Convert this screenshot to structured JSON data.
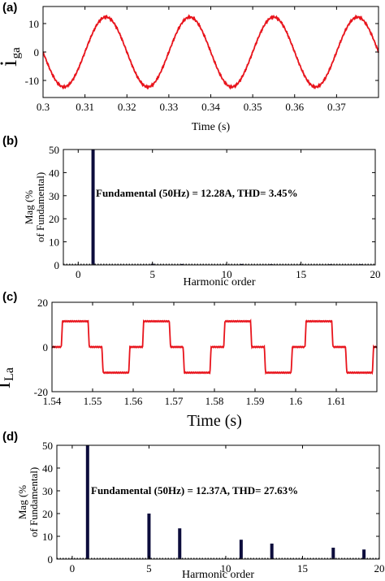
{
  "chart_data": [
    {
      "type": "line",
      "panel": "(a)",
      "ylabel": "i",
      "ylabel_sub": "ga",
      "xlabel": "Time (s)",
      "xlim": [
        0.3,
        0.38
      ],
      "ylim": [
        -16,
        16
      ],
      "xticks": [
        0.3,
        0.31,
        0.32,
        0.33,
        0.34,
        0.35,
        0.36,
        0.37
      ],
      "xtick_labels": [
        "0.3",
        "0.31",
        "0.32",
        "0.33",
        "0.34",
        "0.35",
        "0.36",
        "0.37"
      ],
      "yticks": [
        -10,
        0,
        10
      ],
      "ytick_labels": [
        "-10",
        "0",
        "10"
      ],
      "series": [
        {
          "color": "#e8141c",
          "waveform": "sine",
          "frequency_hz": 50,
          "amplitude": 12.28,
          "peak_at_s": 0.315
        }
      ],
      "grid": false
    },
    {
      "type": "bar",
      "panel": "(b)",
      "ylabel": "Mag (% of Fundamental)",
      "ylabel_lines": [
        "Mag (%",
        "of Fundamental)"
      ],
      "xlabel": "Harmonic order",
      "xlim": [
        -1,
        20
      ],
      "ylim": [
        0,
        50
      ],
      "xticks": [
        0,
        5,
        10,
        15,
        20
      ],
      "xtick_labels": [
        "0",
        "5",
        "10",
        "15",
        "20"
      ],
      "yticks": [
        0,
        10,
        20,
        30,
        40,
        50
      ],
      "ytick_labels": [
        "0",
        "10",
        "20",
        "30",
        "40",
        "50"
      ],
      "x": [
        1,
        5,
        7,
        11,
        13,
        17,
        19
      ],
      "values": [
        50,
        0.5,
        0.4,
        0.4,
        0.3,
        0.3,
        0.3
      ],
      "annotation": "Fundamental (50Hz) = 12.28A, THD= 3.45%",
      "bar_color": "#0c0c3c"
    },
    {
      "type": "line",
      "panel": "(c)",
      "ylabel": "i",
      "ylabel_sub": "La",
      "xlabel": "Time (s)",
      "xlim": [
        1.54,
        1.62
      ],
      "ylim": [
        -20,
        20
      ],
      "xticks": [
        1.54,
        1.55,
        1.56,
        1.57,
        1.58,
        1.59,
        1.6,
        1.61
      ],
      "xtick_labels": [
        "1.54",
        "1.55",
        "1.56",
        "1.57",
        "1.58",
        "1.59",
        "1.6",
        "1.61"
      ],
      "yticks": [
        -20,
        0,
        20
      ],
      "ytick_labels": [
        "-20",
        "0",
        "20"
      ],
      "series": [
        {
          "color": "#e8141c",
          "waveform": "quasi-square",
          "frequency_hz": 50,
          "amplitude": 11.5,
          "first_rise_s": 1.5423
        }
      ],
      "grid": false
    },
    {
      "type": "bar",
      "panel": "(d)",
      "ylabel": "Mag (% of Fundamental)",
      "ylabel_lines": [
        "Mag (%",
        "of Fundamental)"
      ],
      "xlabel": "Harmonic order",
      "xlim": [
        -1,
        20
      ],
      "ylim": [
        0,
        50
      ],
      "xticks": [
        0,
        5,
        10,
        15,
        20
      ],
      "xtick_labels": [
        "0",
        "5",
        "10",
        "15",
        "20"
      ],
      "yticks": [
        0,
        10,
        20,
        30,
        40,
        50
      ],
      "ytick_labels": [
        "0",
        "10",
        "20",
        "30",
        "40",
        "50"
      ],
      "x": [
        1,
        5,
        7,
        11,
        13,
        17,
        19
      ],
      "values": [
        50,
        20,
        13.5,
        8.5,
        6.8,
        5,
        4.2
      ],
      "annotation": "Fundamental (50Hz) = 12.37A, THD= 27.63%",
      "bar_color": "#0c0c3c"
    }
  ]
}
